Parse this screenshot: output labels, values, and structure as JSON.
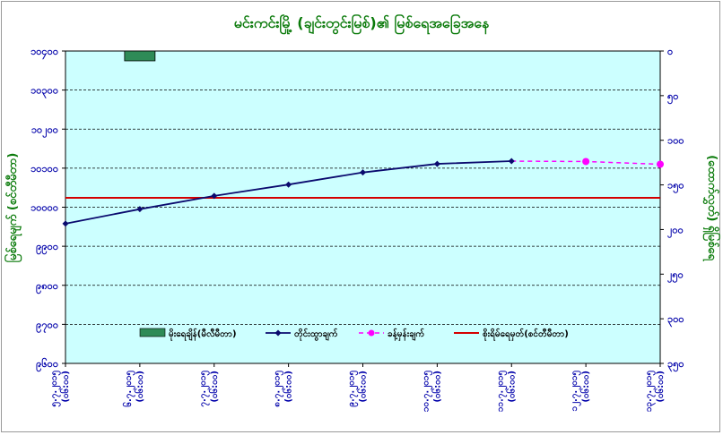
{
  "chart_data": {
    "type": "line",
    "title": "မင်းကင်းမြို့ (ချင်းတွင်းမြစ်)၏ မြစ်ရေအခြေအနေ",
    "ylabel": "မြစ်ရေမျက် (စင်တီမီတာ)",
    "y2label": "(ထောက်လွှတ်) ရှိမြစ်ရေ",
    "ylim": [
      9600,
      10400
    ],
    "yticks": [
      "၉၆၀၀",
      "၉၇၀၀",
      "၉၈၀၀",
      "၉၉၀၀",
      "၁၀၀၀၀",
      "၁၀၁၀၀",
      "၁၀၂၀၀",
      "၁၀၃၀၀",
      "၁၀၄၀၀"
    ],
    "y2ticks": [
      "၀",
      "၅၀",
      "၁၀၀",
      "၁၅၀",
      "၂၀၀",
      "၂၅၀",
      "၃၀၀",
      "၃၅၀"
    ],
    "y2_direction": "inverted",
    "categories": [
      "၅.၇.၂၀၁၅\n(၀၆:၀၀)",
      "၆.၇.၂၀၁၅\n(၀၆:၀၀)",
      "၇.၇.၂၀၁၅\n(၀၆:၀၀)",
      "၈.၇.၂၀၁၅\n(၀၆:၀၀)",
      "၉.၇.၂၀၁၅\n(၀၆:၀၀)",
      "၁၀.၇.၂၀၁၅\n(၀၆:၀၀)",
      "၁၁.၇.၂၀၁၅\n(၀၆:၀၀)",
      "၁၂.၇.၂၀၁၅\n(၀၆:၀၀)",
      "၁၃.၇.၂၀၁၅\n(၀၆:၀၀)"
    ],
    "series": [
      {
        "name": "မိုးရေချိန်(မီလီမီတာ)",
        "kind": "bar",
        "axis": "right",
        "color": "#2e8b57",
        "values": [
          null,
          11,
          null,
          null,
          null,
          null,
          null,
          null,
          null
        ]
      },
      {
        "name": "တိုင်းထွာချက်",
        "kind": "line",
        "color": "#0a0a6e",
        "marker": "diamond",
        "values": [
          9958,
          9995,
          10029,
          10058,
          10089,
          10111,
          10118,
          null,
          null
        ]
      },
      {
        "name": "ခန့်မှန်းချက်",
        "kind": "dashed-line",
        "color": "#ff00ff",
        "marker": "circle",
        "values": [
          null,
          null,
          null,
          null,
          null,
          null,
          null,
          10117,
          10110
        ]
      },
      {
        "name": "စိုးရိမ်ရေမှတ်(စင်တီမီတာ)",
        "kind": "hline",
        "color": "#d40000",
        "value": 10024
      }
    ],
    "grid": true,
    "legend_position": "bottom"
  }
}
